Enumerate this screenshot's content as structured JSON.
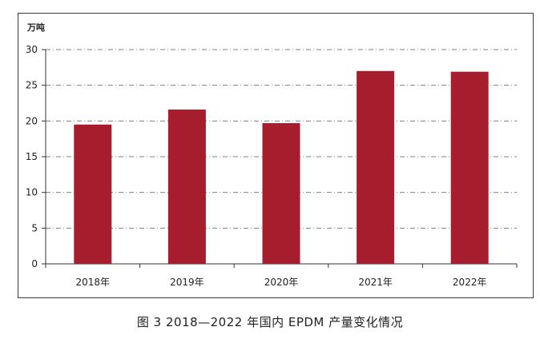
{
  "caption": "图 3 2018—2022 年国内 EPDM 产量变化情况",
  "chart_data": {
    "type": "bar",
    "title": "",
    "ylabel": "万吨",
    "xlabel": "",
    "categories": [
      "2018年",
      "2019年",
      "2020年",
      "2021年",
      "2022年"
    ],
    "values": [
      19.5,
      21.6,
      19.7,
      27.0,
      26.9
    ],
    "ylim": [
      0,
      30
    ],
    "yticks": [
      0,
      5,
      10,
      15,
      20,
      25,
      30
    ],
    "grid": "horizontal dash-dot",
    "legend": "none",
    "bar_color": "#a61e2e"
  }
}
